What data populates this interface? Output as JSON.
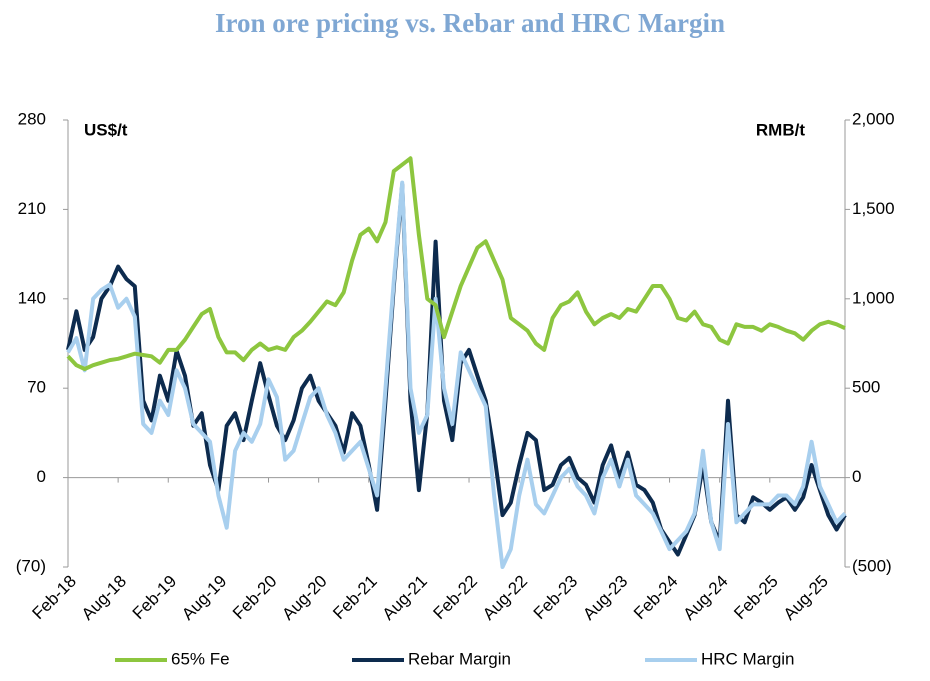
{
  "chart_data": {
    "type": "line",
    "title": "Iron ore pricing vs. Rebar and HRC Margin",
    "y_unit": "US$/t",
    "y2_unit": "RMB/t",
    "x": [
      "Feb-18",
      "Mar-18",
      "Apr-18",
      "May-18",
      "Jun-18",
      "Jul-18",
      "Aug-18",
      "Sep-18",
      "Oct-18",
      "Nov-18",
      "Dec-18",
      "Jan-19",
      "Feb-19",
      "Mar-19",
      "Apr-19",
      "May-19",
      "Jun-19",
      "Jul-19",
      "Aug-19",
      "Sep-19",
      "Oct-19",
      "Nov-19",
      "Dec-19",
      "Jan-20",
      "Feb-20",
      "Mar-20",
      "Apr-20",
      "May-20",
      "Jun-20",
      "Jul-20",
      "Aug-20",
      "Sep-20",
      "Oct-20",
      "Nov-20",
      "Dec-20",
      "Jan-21",
      "Feb-21",
      "Mar-21",
      "Apr-21",
      "May-21",
      "Jun-21",
      "Jul-21",
      "Aug-21",
      "Sep-21",
      "Oct-21",
      "Nov-21",
      "Dec-21",
      "Jan-22",
      "Feb-22",
      "Mar-22",
      "Apr-22",
      "May-22",
      "Jun-22",
      "Jul-22",
      "Aug-22",
      "Sep-22",
      "Oct-22",
      "Nov-22",
      "Dec-22",
      "Jan-23",
      "Feb-23",
      "Mar-23",
      "Apr-23",
      "May-23",
      "Jun-23",
      "Jul-23",
      "Aug-23",
      "Sep-23",
      "Oct-23",
      "Nov-23",
      "Dec-23",
      "Jan-24",
      "Feb-24",
      "Mar-24",
      "Apr-24",
      "May-24",
      "Jun-24",
      "Jul-24",
      "Aug-24",
      "Sep-24",
      "Oct-24",
      "Nov-24",
      "Dec-24",
      "Jan-25",
      "Feb-25",
      "Mar-25",
      "Apr-25",
      "May-25",
      "Jun-25",
      "Jul-25",
      "Aug-25",
      "Sep-25",
      "Oct-25",
      "Nov-25"
    ],
    "xticks": [
      "Feb-18",
      "Aug-18",
      "Feb-19",
      "Aug-19",
      "Feb-20",
      "Aug-20",
      "Feb-21",
      "Aug-21",
      "Feb-22",
      "Aug-22",
      "Feb-23",
      "Aug-23",
      "Feb-24",
      "Aug-24",
      "Feb-25",
      "Aug-25"
    ],
    "ylim": [
      -70,
      280
    ],
    "yticks": [
      {
        "value": -70,
        "label": "(70)"
      },
      0,
      70,
      140,
      210,
      280
    ],
    "y2lim": [
      -500,
      2000
    ],
    "y2ticks": [
      {
        "value": -500,
        "label": "(500)"
      },
      0,
      500,
      {
        "value": 1000,
        "label": "1,000"
      },
      {
        "value": 1500,
        "label": "1,500"
      },
      {
        "value": 2000,
        "label": "2,000"
      }
    ],
    "series": [
      {
        "name": "65% Fe",
        "color": "#8dc63f",
        "axis": "y",
        "values": [
          95,
          88,
          85,
          88,
          90,
          92,
          93,
          95,
          97,
          96,
          95,
          90,
          100,
          100,
          108,
          118,
          128,
          132,
          110,
          98,
          98,
          92,
          100,
          105,
          100,
          102,
          100,
          110,
          115,
          122,
          130,
          138,
          135,
          145,
          170,
          190,
          195,
          185,
          200,
          240,
          245,
          250,
          190,
          140,
          135,
          110,
          130,
          150,
          165,
          180,
          185,
          170,
          155,
          125,
          120,
          115,
          105,
          100,
          125,
          135,
          138,
          145,
          130,
          120,
          125,
          128,
          125,
          132,
          130,
          140,
          150,
          150,
          140,
          125,
          123,
          130,
          120,
          118,
          108,
          105,
          120,
          118,
          118,
          115,
          120,
          118,
          115,
          113,
          108,
          115,
          120,
          122,
          120,
          117
        ]
      },
      {
        "name": "Rebar Margin",
        "color": "#0d2b4e",
        "axis": "y2",
        "values": [
          714,
          930,
          714,
          786,
          1000,
          1070,
          1180,
          1110,
          1070,
          430,
          320,
          570,
          430,
          710,
          570,
          290,
          360,
          70,
          -70,
          290,
          360,
          210,
          430,
          640,
          460,
          290,
          210,
          320,
          500,
          570,
          430,
          360,
          290,
          140,
          360,
          290,
          70,
          -180,
          430,
          1070,
          1640,
          430,
          -70,
          360,
          1320,
          430,
          210,
          640,
          714,
          570,
          430,
          140,
          -210,
          -140,
          70,
          250,
          210,
          -70,
          -40,
          70,
          110,
          0,
          -40,
          -140,
          70,
          180,
          0,
          140,
          -40,
          -70,
          -140,
          -290,
          -360,
          -430,
          -320,
          -210,
          70,
          -250,
          -360,
          430,
          -210,
          -250,
          -110,
          -140,
          -180,
          -140,
          -110,
          -180,
          -110,
          70,
          -70,
          -210,
          -290,
          -210
        ]
      },
      {
        "name": "HRC Margin",
        "color": "#a8cfee",
        "axis": "y2",
        "values": [
          700,
          780,
          600,
          1000,
          1050,
          1080,
          950,
          1000,
          900,
          300,
          250,
          430,
          350,
          600,
          500,
          300,
          250,
          200,
          -100,
          -280,
          150,
          250,
          200,
          300,
          550,
          450,
          100,
          150,
          300,
          450,
          500,
          350,
          250,
          100,
          150,
          200,
          50,
          -100,
          500,
          1100,
          1650,
          500,
          250,
          350,
          1000,
          500,
          300,
          700,
          600,
          500,
          400,
          -100,
          -500,
          -400,
          -100,
          100,
          -150,
          -200,
          -100,
          0,
          50,
          -50,
          -100,
          -200,
          0,
          100,
          -50,
          100,
          -100,
          -150,
          -200,
          -300,
          -400,
          -350,
          -300,
          -200,
          150,
          -250,
          -400,
          300,
          -250,
          -200,
          -150,
          -150,
          -150,
          -100,
          -100,
          -150,
          -50,
          200,
          -50,
          -150,
          -250,
          -200
        ]
      }
    ]
  }
}
